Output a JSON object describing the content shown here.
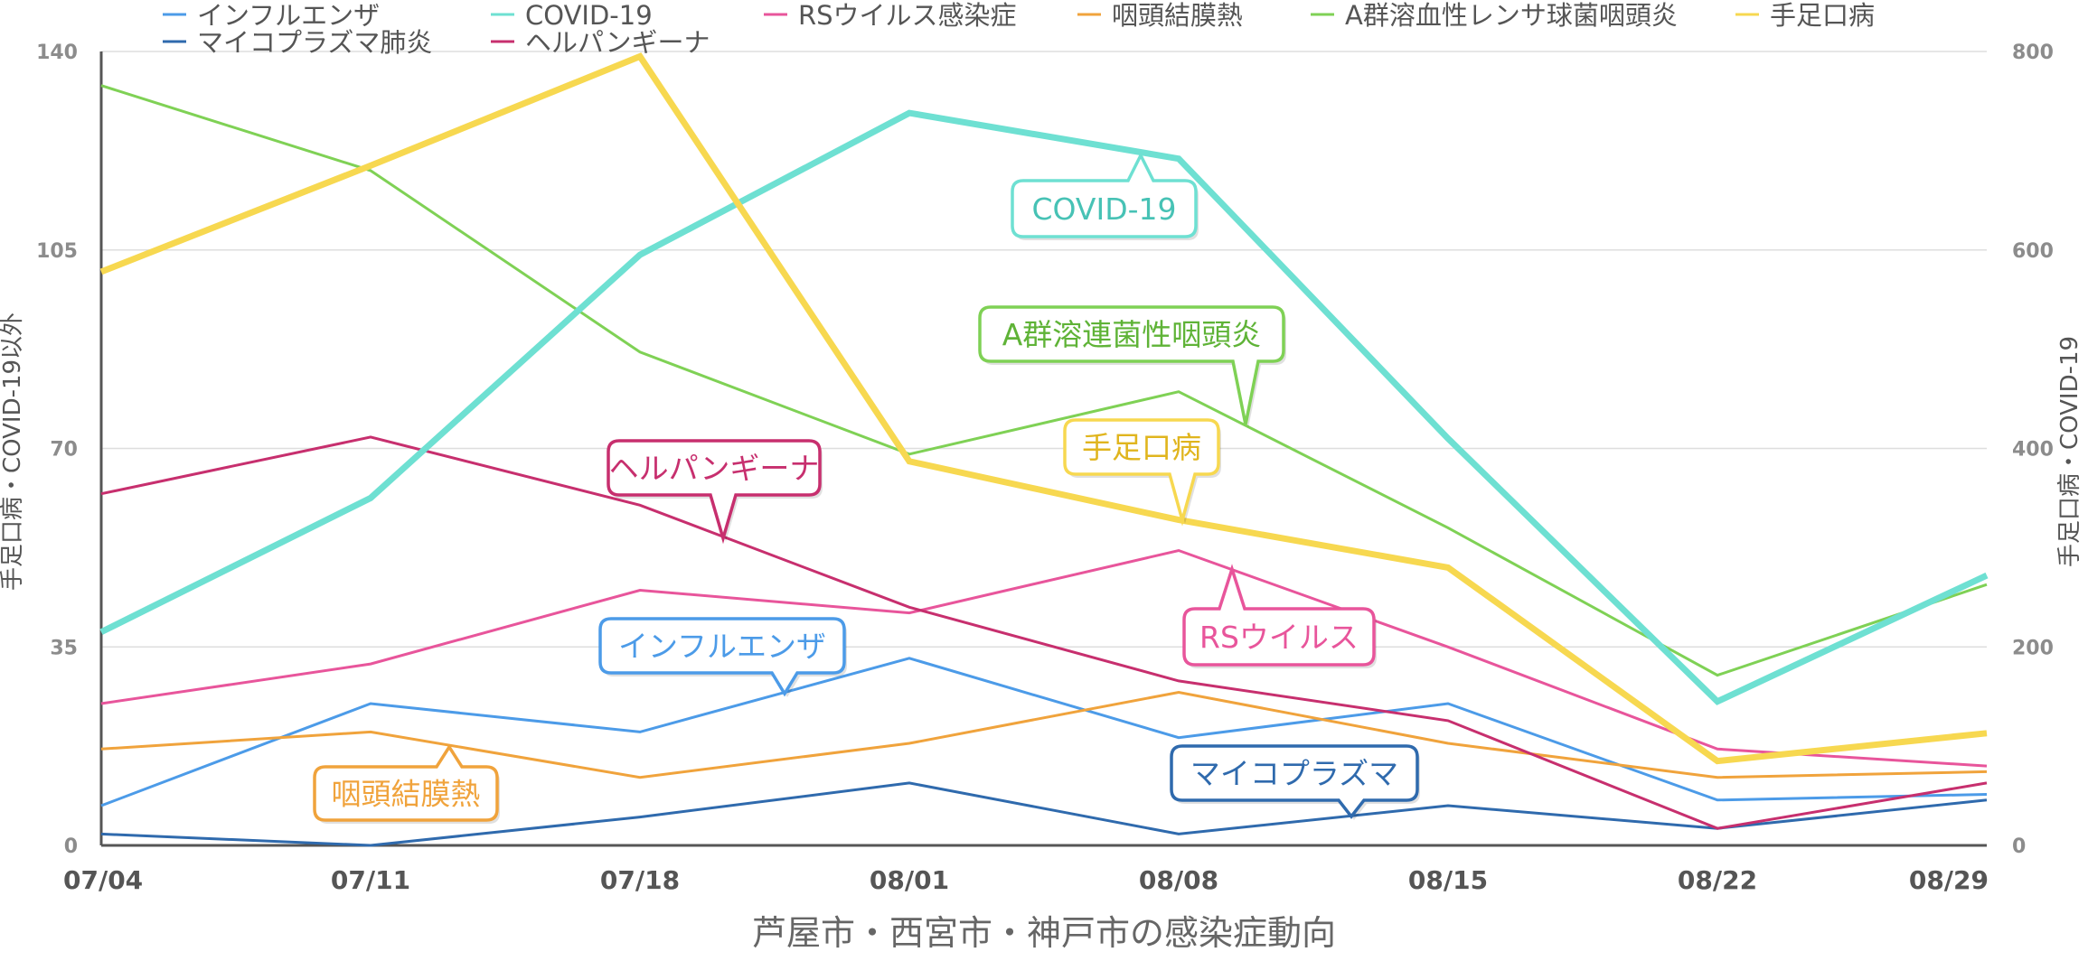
{
  "chart_data": {
    "type": "line",
    "xlabel": "芦屋市・西宮市・神戸市の感染症動向",
    "ylabel_left": "手足口病・COVID-19以外",
    "ylabel_right": "手足口病・COVID-19",
    "categories": [
      "07/04",
      "07/11",
      "07/18",
      "08/01",
      "08/08",
      "08/15",
      "08/22",
      "08/29"
    ],
    "y_left": {
      "min": 0,
      "max": 140,
      "ticks": [
        0,
        35,
        70,
        105,
        140
      ]
    },
    "y_right": {
      "min": 0,
      "max": 800,
      "ticks": [
        0,
        200,
        400,
        600,
        800
      ]
    },
    "grid": true,
    "legend_position": "top",
    "series": [
      {
        "name": "インフルエンザ",
        "axis": "left",
        "color": "#4c9be8",
        "width": 3,
        "values": [
          7,
          25,
          20,
          33,
          19,
          25,
          8,
          9
        ]
      },
      {
        "name": "COVID-19",
        "axis": "right",
        "color": "#6ee0d2",
        "width": 7,
        "values": [
          215,
          350,
          595,
          738,
          692,
          410,
          145,
          272
        ]
      },
      {
        "name": "RSウイルス感染症",
        "axis": "left",
        "color": "#e8559b",
        "width": 3,
        "values": [
          25,
          32,
          45,
          41,
          52,
          35,
          17,
          14
        ]
      },
      {
        "name": "咽頭結膜熱",
        "axis": "left",
        "color": "#f0a33c",
        "width": 3,
        "values": [
          17,
          20,
          12,
          18,
          27,
          18,
          12,
          13
        ]
      },
      {
        "name": "A群溶血性レンサ球菌咽頭炎",
        "axis": "left",
        "color": "#7fd155",
        "width": 3,
        "values": [
          134,
          119,
          87,
          69,
          80,
          56,
          30,
          46
        ]
      },
      {
        "name": "手足口病",
        "axis": "right",
        "color": "#f7d850",
        "width": 7,
        "values": [
          578,
          685,
          795,
          387,
          328,
          280,
          85,
          113
        ]
      },
      {
        "name": "マイコプラズマ肺炎",
        "axis": "left",
        "color": "#2f6aad",
        "width": 3,
        "values": [
          2,
          0,
          5,
          11,
          2,
          7,
          3,
          8
        ]
      },
      {
        "name": "ヘルパンギーナ",
        "axis": "left",
        "color": "#c72f6e",
        "width": 3,
        "values": [
          62,
          72,
          60,
          42,
          29,
          22,
          3,
          11
        ]
      }
    ],
    "callouts": [
      {
        "text": "COVID-19",
        "series": "COVID-19",
        "color": "#6ee0d2",
        "text_color": "#47c2b5"
      },
      {
        "text": "A群溶連菌性咽頭炎",
        "series": "A群溶血性レンサ球菌咽頭炎",
        "color": "#7fd155",
        "text_color": "#5fb337"
      },
      {
        "text": "手足口病",
        "series": "手足口病",
        "color": "#f7d850",
        "text_color": "#e0b51e"
      },
      {
        "text": "ヘルパンギーナ",
        "series": "ヘルパンギーナ",
        "color": "#c72f6e",
        "text_color": "#c72f6e"
      },
      {
        "text": "RSウイルス",
        "series": "RSウイルス感染症",
        "color": "#e8559b",
        "text_color": "#e8559b"
      },
      {
        "text": "インフルエンザ",
        "series": "インフルエンザ",
        "color": "#4c9be8",
        "text_color": "#4c9be8"
      },
      {
        "text": "咽頭結膜熱",
        "series": "咽頭結膜熱",
        "color": "#f0a33c",
        "text_color": "#f0a33c"
      },
      {
        "text": "マイコプラズマ",
        "series": "マイコプラズマ肺炎",
        "color": "#2f6aad",
        "text_color": "#2f6aad"
      }
    ]
  }
}
